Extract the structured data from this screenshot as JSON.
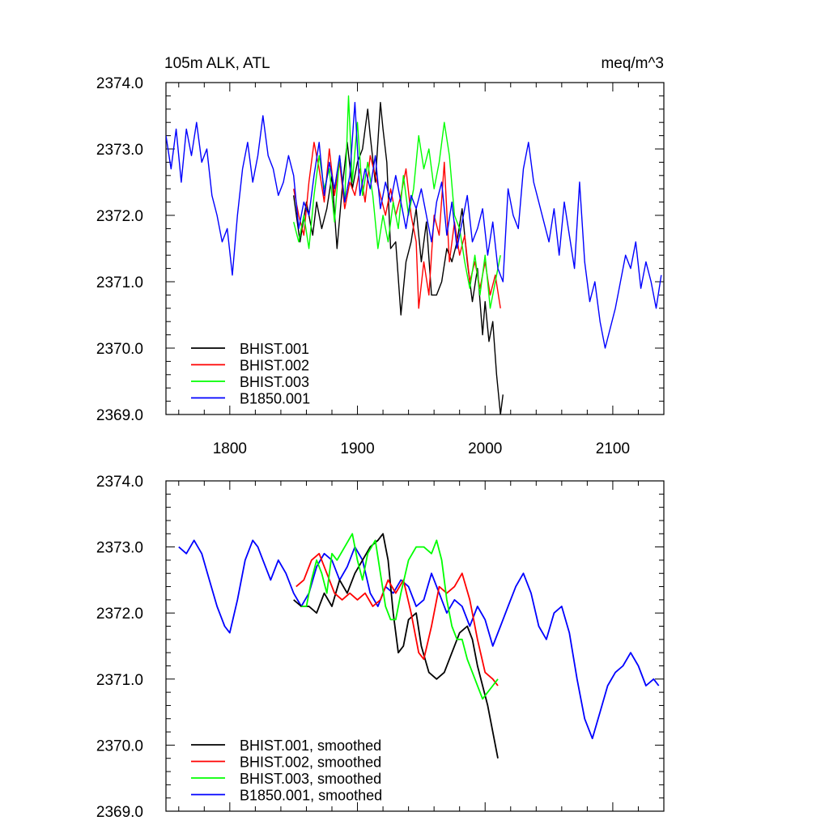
{
  "chart_data": [
    {
      "type": "line",
      "title": "105m ALK, ATL",
      "units": "meq/m^3",
      "xlabel": "",
      "ylabel": "",
      "xlim": [
        1750,
        2140
      ],
      "ylim": [
        2369.0,
        2374.0
      ],
      "x_ticks": [
        1800,
        1900,
        2000,
        2100
      ],
      "x_tick_labels": [
        "1800",
        "1900",
        "2000",
        "2100"
      ],
      "y_ticks": [
        2369.0,
        2370.0,
        2371.0,
        2372.0,
        2373.0,
        2374.0
      ],
      "y_tick_labels": [
        "2369.0",
        "2370.0",
        "2371.0",
        "2372.0",
        "2373.0",
        "2374.0"
      ],
      "grid": false,
      "legend_position": "bottom-left",
      "series": [
        {
          "name": "BHIST.001",
          "color": "#000000",
          "x": [
            1850,
            1855,
            1860,
            1865,
            1868,
            1872,
            1876,
            1880,
            1884,
            1888,
            1892,
            1896,
            1900,
            1904,
            1908,
            1910,
            1914,
            1918,
            1920,
            1923,
            1926,
            1930,
            1934,
            1938,
            1942,
            1946,
            1950,
            1954,
            1958,
            1962,
            1966,
            1970,
            1974,
            1978,
            1982,
            1986,
            1990,
            1994,
            1998,
            2000,
            2003,
            2006,
            2009,
            2012,
            2014
          ],
          "values": [
            2372.3,
            2371.6,
            2372.2,
            2371.7,
            2372.2,
            2371.8,
            2372.1,
            2372.6,
            2371.5,
            2372.4,
            2373.1,
            2372.4,
            2372.8,
            2373.0,
            2373.6,
            2373.2,
            2372.5,
            2373.7,
            2373.3,
            2372.8,
            2371.5,
            2371.6,
            2370.5,
            2371.3,
            2371.6,
            2372.1,
            2371.3,
            2371.9,
            2370.8,
            2370.8,
            2371.0,
            2371.5,
            2371.3,
            2371.6,
            2372.1,
            2371.3,
            2370.7,
            2371.2,
            2370.2,
            2370.7,
            2370.1,
            2370.4,
            2369.6,
            2369.0,
            2369.3
          ]
        },
        {
          "name": "BHIST.002",
          "color": "#ff0000",
          "x": [
            1850,
            1854,
            1858,
            1862,
            1866,
            1870,
            1874,
            1878,
            1882,
            1886,
            1890,
            1894,
            1898,
            1902,
            1906,
            1910,
            1914,
            1918,
            1922,
            1926,
            1930,
            1934,
            1938,
            1942,
            1946,
            1948,
            1952,
            1956,
            1960,
            1964,
            1968,
            1972,
            1976,
            1980,
            1984,
            1988,
            1992,
            1996,
            2000,
            2004,
            2008,
            2012
          ],
          "values": [
            2372.4,
            2372.0,
            2371.7,
            2372.5,
            2373.1,
            2372.7,
            2372.2,
            2373.0,
            2372.3,
            2372.8,
            2372.1,
            2372.5,
            2372.3,
            2372.7,
            2372.2,
            2372.9,
            2372.6,
            2372.3,
            2372.0,
            2372.4,
            2372.0,
            2372.3,
            2372.7,
            2372.0,
            2371.6,
            2370.6,
            2371.3,
            2370.8,
            2372.0,
            2371.7,
            2372.8,
            2371.3,
            2371.9,
            2371.4,
            2371.7,
            2371.0,
            2371.3,
            2370.9,
            2371.3,
            2370.8,
            2371.1,
            2370.6
          ]
        },
        {
          "name": "BHIST.003",
          "color": "#00ff00",
          "x": [
            1850,
            1854,
            1858,
            1862,
            1866,
            1870,
            1874,
            1878,
            1882,
            1886,
            1890,
            1893,
            1896,
            1900,
            1904,
            1908,
            1912,
            1916,
            1920,
            1924,
            1928,
            1932,
            1936,
            1940,
            1944,
            1948,
            1952,
            1956,
            1960,
            1964,
            1968,
            1972,
            1976,
            1980,
            1984,
            1988,
            1992,
            1996,
            2000,
            2004,
            2008,
            2012
          ],
          "values": [
            2371.9,
            2371.6,
            2372.0,
            2371.5,
            2372.3,
            2372.9,
            2372.4,
            2372.7,
            2371.9,
            2372.9,
            2372.2,
            2373.8,
            2372.5,
            2373.4,
            2372.3,
            2372.8,
            2372.3,
            2371.5,
            2372.0,
            2371.6,
            2372.2,
            2371.8,
            2372.6,
            2372.0,
            2372.4,
            2373.2,
            2372.7,
            2373.0,
            2372.4,
            2372.8,
            2373.4,
            2372.9,
            2372.0,
            2371.8,
            2371.3,
            2370.9,
            2371.4,
            2370.8,
            2371.4,
            2370.6,
            2371.0,
            2371.4
          ]
        },
        {
          "name": "B1850.001",
          "color": "#0000ff",
          "x": [
            1750,
            1754,
            1758,
            1762,
            1766,
            1770,
            1774,
            1778,
            1782,
            1786,
            1790,
            1794,
            1798,
            1802,
            1806,
            1810,
            1814,
            1818,
            1822,
            1826,
            1830,
            1834,
            1838,
            1842,
            1846,
            1850,
            1854,
            1858,
            1862,
            1866,
            1870,
            1874,
            1878,
            1882,
            1886,
            1890,
            1894,
            1898,
            1902,
            1906,
            1910,
            1914,
            1918,
            1922,
            1926,
            1930,
            1934,
            1938,
            1942,
            1946,
            1950,
            1954,
            1958,
            1962,
            1966,
            1970,
            1974,
            1978,
            1982,
            1986,
            1990,
            1994,
            1998,
            2002,
            2006,
            2010,
            2014,
            2018,
            2022,
            2026,
            2030,
            2034,
            2038,
            2042,
            2046,
            2050,
            2054,
            2058,
            2062,
            2066,
            2070,
            2074,
            2078,
            2082,
            2086,
            2090,
            2094,
            2098,
            2102,
            2106,
            2110,
            2114,
            2118,
            2122,
            2126,
            2130,
            2134,
            2138
          ],
          "values": [
            2373.2,
            2372.7,
            2373.3,
            2372.5,
            2373.3,
            2372.9,
            2373.4,
            2372.8,
            2373.0,
            2372.3,
            2372.0,
            2371.6,
            2371.8,
            2371.1,
            2372.0,
            2372.7,
            2373.1,
            2372.5,
            2372.9,
            2373.5,
            2372.9,
            2372.7,
            2372.3,
            2372.5,
            2372.9,
            2372.6,
            2371.8,
            2372.2,
            2372.0,
            2372.6,
            2373.1,
            2372.3,
            2372.8,
            2372.4,
            2372.9,
            2372.2,
            2372.6,
            2373.7,
            2372.3,
            2372.7,
            2372.4,
            2372.9,
            2372.1,
            2372.5,
            2372.2,
            2372.6,
            2372.2,
            2371.8,
            2372.3,
            2372.1,
            2372.4,
            2372.0,
            2371.6,
            2372.2,
            2372.5,
            2371.7,
            2372.2,
            2371.5,
            2371.9,
            2372.3,
            2371.6,
            2371.8,
            2372.1,
            2371.4,
            2371.9,
            2371.2,
            2371.0,
            2372.4,
            2372.0,
            2371.8,
            2372.7,
            2373.1,
            2372.5,
            2372.2,
            2371.9,
            2371.6,
            2372.1,
            2371.4,
            2372.2,
            2371.7,
            2371.2,
            2372.5,
            2371.3,
            2370.7,
            2371.0,
            2370.4,
            2370.0,
            2370.3,
            2370.6,
            2371.0,
            2371.4,
            2371.2,
            2371.6,
            2370.9,
            2371.3,
            2371.0,
            2370.6,
            2371.1
          ]
        }
      ]
    },
    {
      "type": "line",
      "title": "",
      "xlabel": "",
      "ylabel": "",
      "xlim": [
        1750,
        2140
      ],
      "ylim": [
        2369.0,
        2374.0
      ],
      "x_ticks": [
        1800,
        1900,
        2000,
        2100
      ],
      "x_tick_labels": [],
      "y_ticks": [
        2369.0,
        2370.0,
        2371.0,
        2372.0,
        2373.0,
        2374.0
      ],
      "y_tick_labels": [
        "2369.0",
        "2370.0",
        "2371.0",
        "2372.0",
        "2373.0",
        "2374.0"
      ],
      "grid": false,
      "legend_position": "bottom-left",
      "series": [
        {
          "name": "BHIST.001, smoothed",
          "color": "#000000",
          "x": [
            1850,
            1856,
            1862,
            1868,
            1874,
            1880,
            1886,
            1892,
            1898,
            1904,
            1910,
            1916,
            1920,
            1924,
            1928,
            1932,
            1936,
            1940,
            1946,
            1950,
            1956,
            1962,
            1968,
            1974,
            1980,
            1986,
            1990,
            1994,
            1998,
            2002,
            2006,
            2010
          ],
          "values": [
            2372.2,
            2372.1,
            2372.1,
            2372.0,
            2372.3,
            2372.1,
            2372.5,
            2372.3,
            2372.6,
            2372.8,
            2373.0,
            2373.1,
            2373.2,
            2372.8,
            2372.0,
            2371.4,
            2371.5,
            2371.9,
            2372.0,
            2371.5,
            2371.1,
            2371.0,
            2371.1,
            2371.4,
            2371.7,
            2371.8,
            2371.6,
            2371.2,
            2370.9,
            2370.6,
            2370.2,
            2369.8
          ]
        },
        {
          "name": "BHIST.002, smoothed",
          "color": "#ff0000",
          "x": [
            1852,
            1858,
            1864,
            1870,
            1876,
            1882,
            1888,
            1894,
            1900,
            1906,
            1912,
            1918,
            1924,
            1930,
            1936,
            1942,
            1948,
            1952,
            1958,
            1964,
            1970,
            1976,
            1982,
            1988,
            1994,
            2000,
            2006,
            2010
          ],
          "values": [
            2372.4,
            2372.5,
            2372.8,
            2372.9,
            2372.6,
            2372.3,
            2372.2,
            2372.3,
            2372.2,
            2372.3,
            2372.1,
            2372.2,
            2372.5,
            2372.3,
            2372.5,
            2372.0,
            2371.4,
            2371.3,
            2371.8,
            2372.4,
            2372.3,
            2372.4,
            2372.6,
            2372.2,
            2371.6,
            2371.1,
            2371.0,
            2370.9
          ]
        },
        {
          "name": "BHIST.003, smoothed",
          "color": "#00ff00",
          "x": [
            1856,
            1860,
            1864,
            1868,
            1872,
            1876,
            1880,
            1884,
            1890,
            1896,
            1900,
            1904,
            1908,
            1914,
            1918,
            1922,
            1926,
            1930,
            1934,
            1940,
            1946,
            1952,
            1958,
            1962,
            1966,
            1970,
            1974,
            1978,
            1982,
            1986,
            1990,
            1994,
            1998,
            2002,
            2006,
            2010
          ],
          "values": [
            2372.1,
            2372.1,
            2372.5,
            2372.8,
            2372.6,
            2372.3,
            2372.9,
            2372.8,
            2373.0,
            2373.2,
            2372.8,
            2372.5,
            2372.9,
            2373.1,
            2372.6,
            2372.1,
            2371.9,
            2371.9,
            2372.3,
            2372.8,
            2373.0,
            2373.0,
            2372.9,
            2373.1,
            2372.8,
            2372.2,
            2371.8,
            2371.6,
            2371.6,
            2371.3,
            2371.1,
            2370.9,
            2370.7,
            2370.8,
            2370.9,
            2371.0
          ]
        },
        {
          "name": "B1850.001, smoothed",
          "color": "#0000ff",
          "x": [
            1760,
            1766,
            1772,
            1778,
            1784,
            1790,
            1796,
            1800,
            1806,
            1812,
            1818,
            1822,
            1826,
            1832,
            1838,
            1844,
            1850,
            1856,
            1862,
            1868,
            1874,
            1880,
            1886,
            1892,
            1898,
            1904,
            1910,
            1916,
            1922,
            1928,
            1934,
            1940,
            1946,
            1952,
            1958,
            1964,
            1970,
            1976,
            1982,
            1988,
            1994,
            2000,
            2006,
            2012,
            2018,
            2024,
            2030,
            2036,
            2042,
            2048,
            2054,
            2060,
            2066,
            2072,
            2078,
            2084,
            2090,
            2096,
            2102,
            2108,
            2114,
            2120,
            2126,
            2132,
            2136
          ],
          "values": [
            2373.0,
            2372.9,
            2373.1,
            2372.9,
            2372.5,
            2372.1,
            2371.8,
            2371.7,
            2372.2,
            2372.8,
            2373.1,
            2373.0,
            2372.8,
            2372.5,
            2372.8,
            2372.6,
            2372.3,
            2372.1,
            2372.3,
            2372.7,
            2372.9,
            2372.8,
            2372.5,
            2372.7,
            2373.0,
            2372.8,
            2372.3,
            2372.1,
            2372.4,
            2372.3,
            2372.5,
            2372.4,
            2372.1,
            2372.2,
            2372.6,
            2372.3,
            2372.0,
            2372.2,
            2372.1,
            2371.8,
            2372.1,
            2371.9,
            2371.5,
            2371.8,
            2372.1,
            2372.4,
            2372.6,
            2372.3,
            2371.8,
            2371.6,
            2372.0,
            2372.1,
            2371.7,
            2371.0,
            2370.4,
            2370.1,
            2370.5,
            2370.9,
            2371.1,
            2371.2,
            2371.4,
            2371.2,
            2370.9,
            2371.0,
            2370.9
          ]
        }
      ]
    }
  ]
}
